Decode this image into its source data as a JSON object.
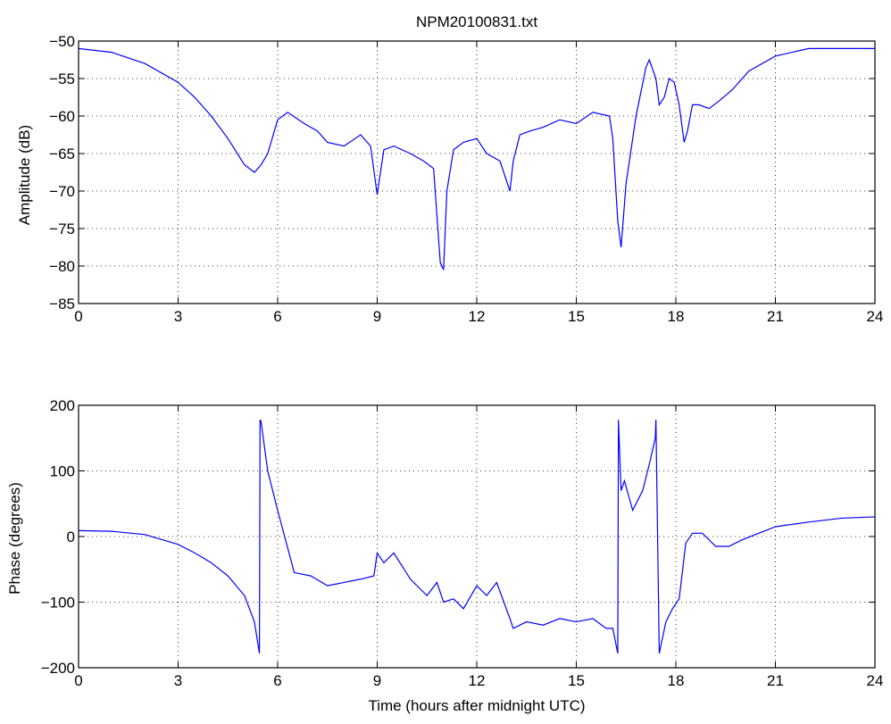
{
  "title": "NPM20100831.txt",
  "colors": {
    "line": "#0000ff",
    "axes": "#000000",
    "grid": "#000000",
    "background": "#ffffff"
  },
  "chart_data": [
    {
      "type": "line",
      "title": "NPM20100831.txt",
      "xlabel": "",
      "ylabel": "Amplitude (dB)",
      "xlim": [
        0,
        24
      ],
      "ylim": [
        -85,
        -50
      ],
      "xticks": [
        0,
        3,
        6,
        9,
        12,
        15,
        18,
        21,
        24
      ],
      "yticks": [
        -85,
        -80,
        -75,
        -70,
        -65,
        -60,
        -55,
        -50
      ],
      "grid": true,
      "series": [
        {
          "x": [
            0,
            1,
            2,
            3,
            3.5,
            4,
            4.5,
            5,
            5.3,
            5.5,
            5.7,
            6,
            6.3,
            6.8,
            7.2,
            7.5,
            8,
            8.5,
            8.8,
            9.0,
            9.2,
            9.5,
            10,
            10.4,
            10.7,
            10.9,
            11.0,
            11.1,
            11.3,
            11.6,
            12,
            12.3,
            12.7,
            13.0,
            13.1,
            13.3,
            13.6,
            14,
            14.5,
            15,
            15.5,
            16,
            16.1,
            16.25,
            16.35,
            16.5,
            16.8,
            17.1,
            17.2,
            17.4,
            17.5,
            17.65,
            17.8,
            17.95,
            18.1,
            18.25,
            18.35,
            18.5,
            18.7,
            19.0,
            19.3,
            19.7,
            20.2,
            21,
            22,
            23,
            24
          ],
          "y": [
            -51,
            -51.5,
            -53,
            -55.5,
            -57.5,
            -60,
            -63,
            -66.5,
            -67.5,
            -66.5,
            -65,
            -60.5,
            -59.5,
            -61,
            -62,
            -63.5,
            -64,
            -62.5,
            -64,
            -70.5,
            -64.5,
            -64,
            -65,
            -66,
            -67,
            -79.5,
            -80.5,
            -70,
            -64.5,
            -63.5,
            -63,
            -65,
            -66,
            -70,
            -66,
            -62.5,
            -62,
            -61.5,
            -60.5,
            -61,
            -59.5,
            -60,
            -63,
            -74,
            -77.5,
            -69,
            -60,
            -53.5,
            -52.5,
            -55,
            -58.5,
            -57.5,
            -55,
            -55.5,
            -58.5,
            -63.5,
            -62,
            -58.5,
            -58.5,
            -59,
            -58,
            -56.5,
            -54,
            -52,
            -51,
            -51,
            -51
          ]
        }
      ]
    },
    {
      "type": "line",
      "title": "",
      "xlabel": "Time (hours after midnight UTC)",
      "ylabel": "Phase (degrees)",
      "xlim": [
        0,
        24
      ],
      "ylim": [
        -200,
        200
      ],
      "xticks": [
        0,
        3,
        6,
        9,
        12,
        15,
        18,
        21,
        24
      ],
      "yticks": [
        -200,
        -100,
        0,
        100,
        200
      ],
      "grid": true,
      "series": [
        {
          "x": [
            0,
            1,
            2,
            3,
            3.5,
            4,
            4.5,
            5,
            5.3,
            5.45,
            5.47,
            5.5,
            5.7,
            6,
            6.5,
            7,
            7.5,
            8,
            8.5,
            8.9,
            9.0,
            9.2,
            9.5,
            10,
            10.5,
            10.8,
            11.0,
            11.3,
            11.6,
            12,
            12.3,
            12.6,
            13,
            13.1,
            13.5,
            14,
            14.5,
            15,
            15.5,
            15.9,
            16.1,
            16.25,
            16.27,
            16.35,
            16.45,
            16.7,
            17.0,
            17.2,
            17.38,
            17.4,
            17.5,
            17.7,
            17.9,
            18.1,
            18.3,
            18.5,
            18.8,
            19.2,
            19.6,
            20,
            20.5,
            21,
            22,
            23,
            24
          ],
          "y": [
            9,
            8,
            3,
            -12,
            -25,
            -40,
            -60,
            -90,
            -130,
            -178,
            178,
            175,
            100,
            40,
            -55,
            -60,
            -75,
            -70,
            -65,
            -60,
            -25,
            -40,
            -25,
            -65,
            -90,
            -70,
            -100,
            -95,
            -110,
            -75,
            -90,
            -70,
            -125,
            -140,
            -130,
            -135,
            -125,
            -130,
            -125,
            -140,
            -140,
            -178,
            178,
            70,
            85,
            40,
            70,
            110,
            150,
            178,
            -178,
            -130,
            -110,
            -95,
            -10,
            5,
            5,
            -15,
            -15,
            -5,
            5,
            15,
            22,
            28,
            30
          ]
        }
      ]
    }
  ]
}
